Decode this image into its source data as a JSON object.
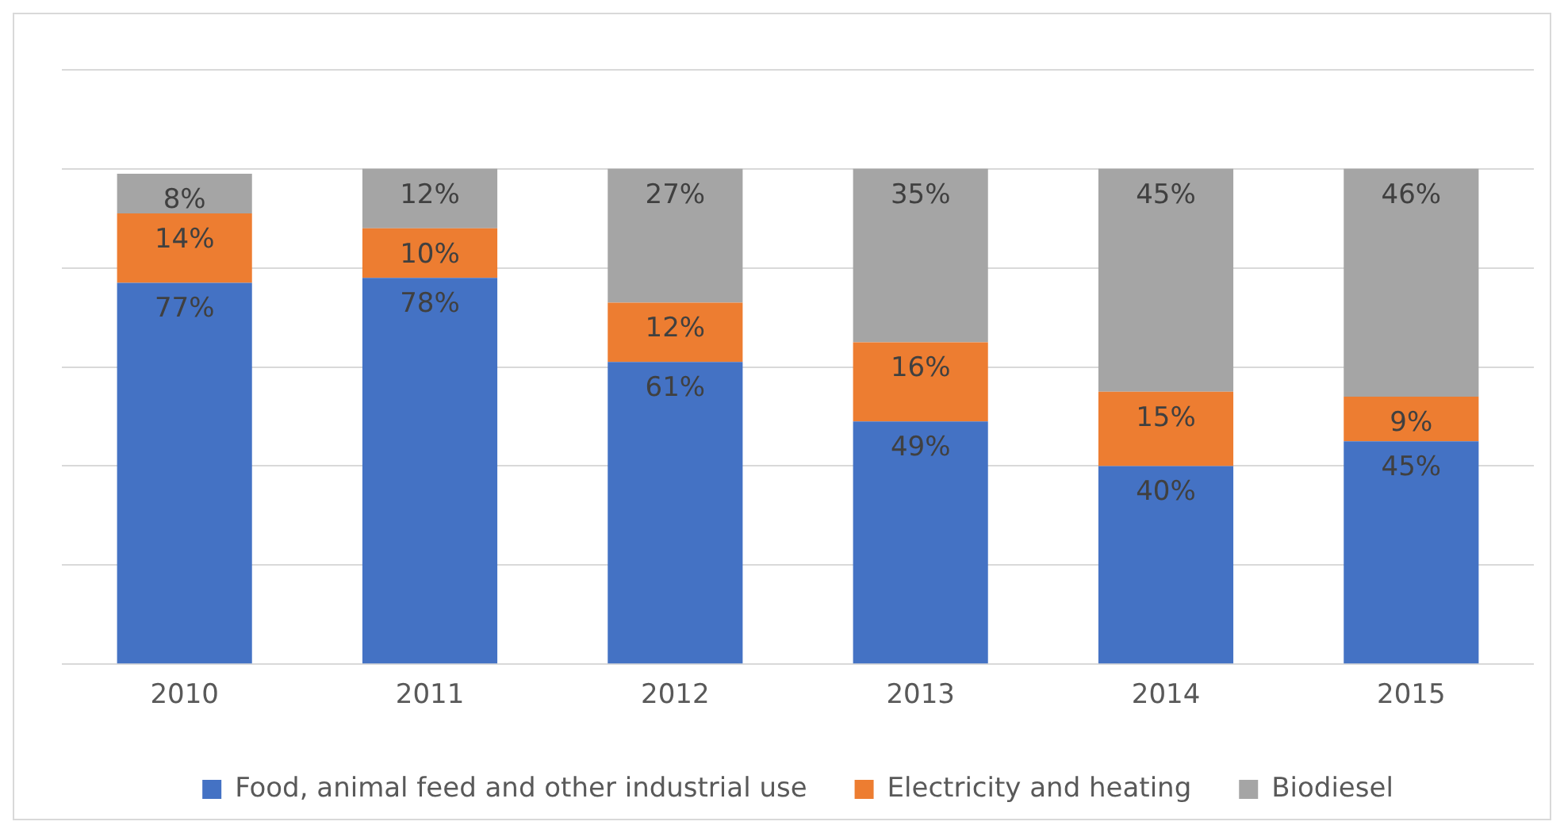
{
  "chart_data": {
    "type": "bar",
    "stacked": true,
    "categories": [
      "2010",
      "2011",
      "2012",
      "2013",
      "2014",
      "2015"
    ],
    "series": [
      {
        "name": "Food, animal feed and other industrial use",
        "color": "#4472c4",
        "values": [
          77,
          78,
          61,
          49,
          40,
          45
        ],
        "value_labels": [
          "77%",
          "78%",
          "61%",
          "49%",
          "40%",
          "45%"
        ]
      },
      {
        "name": "Electricity and heating",
        "color": "#ed7d31",
        "values": [
          14,
          10,
          12,
          16,
          15,
          9
        ],
        "value_labels": [
          "14%",
          "10%",
          "12%",
          "16%",
          "15%",
          "9%"
        ]
      },
      {
        "name": "Biodiesel",
        "color": "#a5a5a5",
        "values": [
          8,
          12,
          27,
          35,
          45,
          46
        ],
        "value_labels": [
          "8%",
          "12%",
          "27%",
          "35%",
          "45%",
          "46%"
        ]
      }
    ],
    "tick_labels": "x",
    "grid": "y",
    "legend": "bottom"
  }
}
